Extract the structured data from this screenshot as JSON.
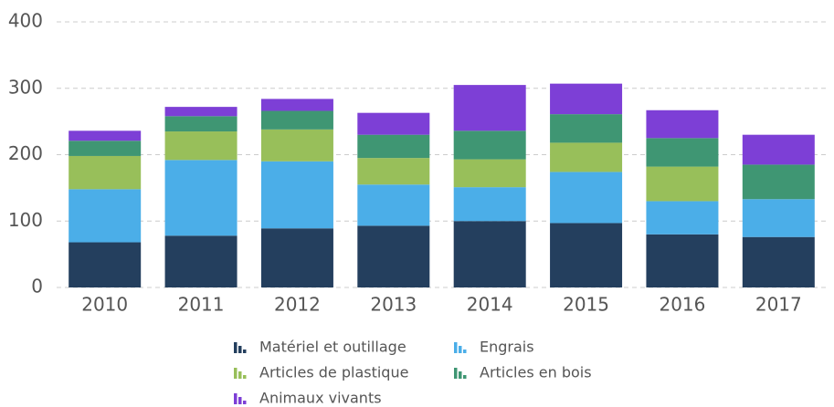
{
  "chart_data": {
    "type": "stacked_bar",
    "categories": [
      "2010",
      "2011",
      "2012",
      "2013",
      "2014",
      "2015",
      "2016",
      "2017"
    ],
    "series": [
      {
        "name": "Matériel et outillage",
        "color": "#243f5e",
        "values": [
          68,
          78,
          89,
          93,
          100,
          97,
          80,
          76
        ]
      },
      {
        "name": "Engrais",
        "color": "#4baee8",
        "values": [
          80,
          114,
          101,
          62,
          51,
          77,
          50,
          57
        ]
      },
      {
        "name": "Articles de plastique",
        "color": "#98bf5a",
        "values": [
          50,
          43,
          48,
          40,
          42,
          44,
          52,
          0
        ]
      },
      {
        "name": "Articles en bois",
        "color": "#3f9673",
        "values": [
          23,
          23,
          28,
          35,
          43,
          43,
          43,
          52
        ]
      },
      {
        "name": "Animaux vivants",
        "color": "#7d3fd6",
        "values": [
          15,
          14,
          18,
          33,
          69,
          46,
          42,
          45
        ]
      }
    ],
    "ylim": [
      0,
      400
    ],
    "yticks": [
      0,
      100,
      200,
      300,
      400
    ],
    "grid": true
  }
}
